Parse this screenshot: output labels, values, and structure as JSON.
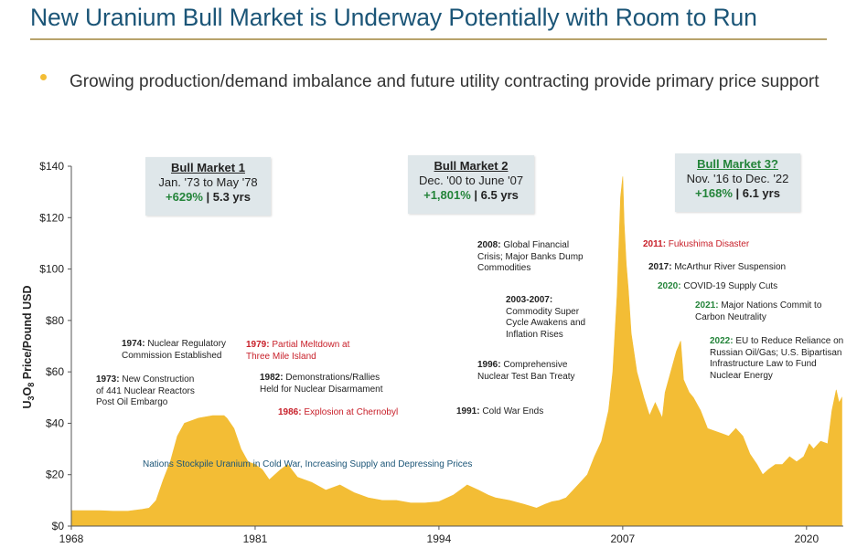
{
  "title": "New Uranium Bull Market is Underway Potentially with Room to Run",
  "subtitle": "Growing production/demand imbalance and future utility contracting provide primary price support",
  "colors": {
    "title": "#1b5577",
    "area": "#f3bd35",
    "accent_green": "#24843a",
    "accent_red": "#c8202a",
    "rule": "#b8a36c"
  },
  "chart_data": {
    "type": "area",
    "ylabel": "U3O8 Price/Pound USD",
    "ylabel_parts": {
      "main": "U",
      "sub1": "3",
      "mid": "O",
      "sub2": "8",
      "rest": " Price/Pound USD"
    },
    "ylim": [
      0,
      140
    ],
    "xlim": [
      1968,
      2022.6
    ],
    "yticks": [
      0,
      20,
      40,
      60,
      80,
      100,
      120,
      140
    ],
    "ytick_labels": [
      "$0",
      "$20",
      "$40",
      "$60",
      "$80",
      "$100",
      "$120",
      "$140"
    ],
    "xticks": [
      1968,
      1981,
      1994,
      2007,
      2020
    ],
    "xtick_labels": [
      "1968",
      "1981",
      "1994",
      "2007",
      "2020"
    ],
    "series": [
      {
        "x": [
          1968,
          1969,
          1970,
          1971,
          1972,
          1973,
          1973.5,
          1974,
          1974.5,
          1975,
          1975.5,
          1976,
          1977,
          1978,
          1978.8,
          1979,
          1979.5,
          1980,
          1980.5,
          1981,
          1981.5,
          1982,
          1982.8,
          1983.3,
          1984,
          1985,
          1986,
          1987,
          1988,
          1989,
          1990,
          1991,
          1992,
          1993,
          1994,
          1995,
          1996,
          1996.8,
          1997.5,
          1998,
          1999,
          2000,
          2000.9,
          2001.5,
          2002,
          2002.5,
          2003,
          2003.5,
          2004,
          2004.5,
          2005,
          2005.5,
          2006,
          2006.3,
          2006.6,
          2006.85,
          2007.0,
          2007.1,
          2007.25,
          2007.4,
          2007.6,
          2008,
          2008.5,
          2008.9,
          2009.3,
          2009.8,
          2010,
          2010.4,
          2010.8,
          2011.1,
          2011.3,
          2011.7,
          2012,
          2012.5,
          2013,
          2013.5,
          2014,
          2014.5,
          2015,
          2015.5,
          2016,
          2016.5,
          2016.9,
          2017.3,
          2017.8,
          2018.3,
          2018.8,
          2019.3,
          2019.8,
          2020.2,
          2020.5,
          2021,
          2021.5,
          2021.8,
          2022.1,
          2022.3,
          2022.5
        ],
        "values": [
          6,
          6,
          6,
          5.8,
          5.8,
          6.5,
          7,
          10,
          18,
          25,
          35,
          40,
          42,
          43,
          43,
          42,
          38,
          30,
          25,
          24,
          22,
          18,
          22,
          24,
          19,
          17,
          14,
          16,
          13,
          11,
          10,
          10,
          9,
          9,
          9.5,
          12,
          16,
          14,
          12,
          11,
          10,
          8.5,
          7,
          8.5,
          9.5,
          10,
          11,
          14,
          17,
          20,
          27,
          33,
          45,
          60,
          90,
          128,
          136,
          118,
          102,
          92,
          75,
          60,
          50,
          43,
          48,
          42,
          52,
          60,
          68,
          72,
          57,
          52,
          50,
          45,
          38,
          37,
          36,
          35,
          38,
          35,
          28,
          24,
          20,
          22,
          24,
          24,
          27,
          25,
          27,
          32,
          30,
          33,
          32,
          45,
          53,
          48,
          50
        ]
      }
    ],
    "boxes": [
      {
        "title": "Bull Market 1",
        "dates": "Jan. '73 to May '78",
        "gain": "+629%",
        "sep": " | ",
        "duration": "5.3 yrs",
        "green_title": false
      },
      {
        "title": "Bull Market 2",
        "dates": "Dec. '00 to June '07",
        "gain": "+1,801%",
        "sep": " | ",
        "duration": "6.5 yrs",
        "green_title": false
      },
      {
        "title": "Bull Market 3?",
        "dates": "Nov. '16 to Dec. '22",
        "gain": "+168%",
        "sep": " | ",
        "duration": "6.1 yrs",
        "green_title": true
      }
    ],
    "annotations": [
      {
        "year": "1974:",
        "text": " Nuclear Regulatory\nCommission Established",
        "style": "black"
      },
      {
        "year": "1973:",
        "text": " New Construction\nof 441 Nuclear Reactors\nPost Oil Embargo",
        "style": "black"
      },
      {
        "year": "1979:",
        "text": " Partial Meltdown at\nThree Mile Island",
        "style": "red"
      },
      {
        "year": "1982:",
        "text": " Demonstrations/Rallies\nHeld for Nuclear Disarmament",
        "style": "black"
      },
      {
        "year": "1986:",
        "text": " Explosion at Chernobyl",
        "style": "red"
      },
      {
        "year": "2008:",
        "text": " Global Financial\nCrisis; Major Banks Dump\nCommodities",
        "style": "black"
      },
      {
        "year": "2003-2007:",
        "text": "\nCommodity Super\nCycle Awakens and\nInflation Rises",
        "style": "black"
      },
      {
        "year": "1996:",
        "text": " Comprehensive\nNuclear Test Ban Treaty",
        "style": "black"
      },
      {
        "year": "1991:",
        "text": " Cold War Ends",
        "style": "black"
      },
      {
        "year": "2011:",
        "text": " Fukushima Disaster",
        "style": "red"
      },
      {
        "year": "2017:",
        "text": " McArthur River Suspension",
        "style": "black"
      },
      {
        "year": "2020:",
        "text": " COVID-19 Supply Cuts",
        "style": "green"
      },
      {
        "year": "2021:",
        "text": " Major Nations Commit to\nCarbon Neutrality",
        "style": "green"
      },
      {
        "year": "2022:",
        "text": " EU to Reduce Reliance on\nRussian Oil/Gas; U.S. Bipartisan\nInfrastructure Law to Fund\nNuclear Energy",
        "style": "green"
      }
    ],
    "band_note": "Nations Stockpile Uranium in Cold War, Increasing Supply and Depressing Prices"
  }
}
